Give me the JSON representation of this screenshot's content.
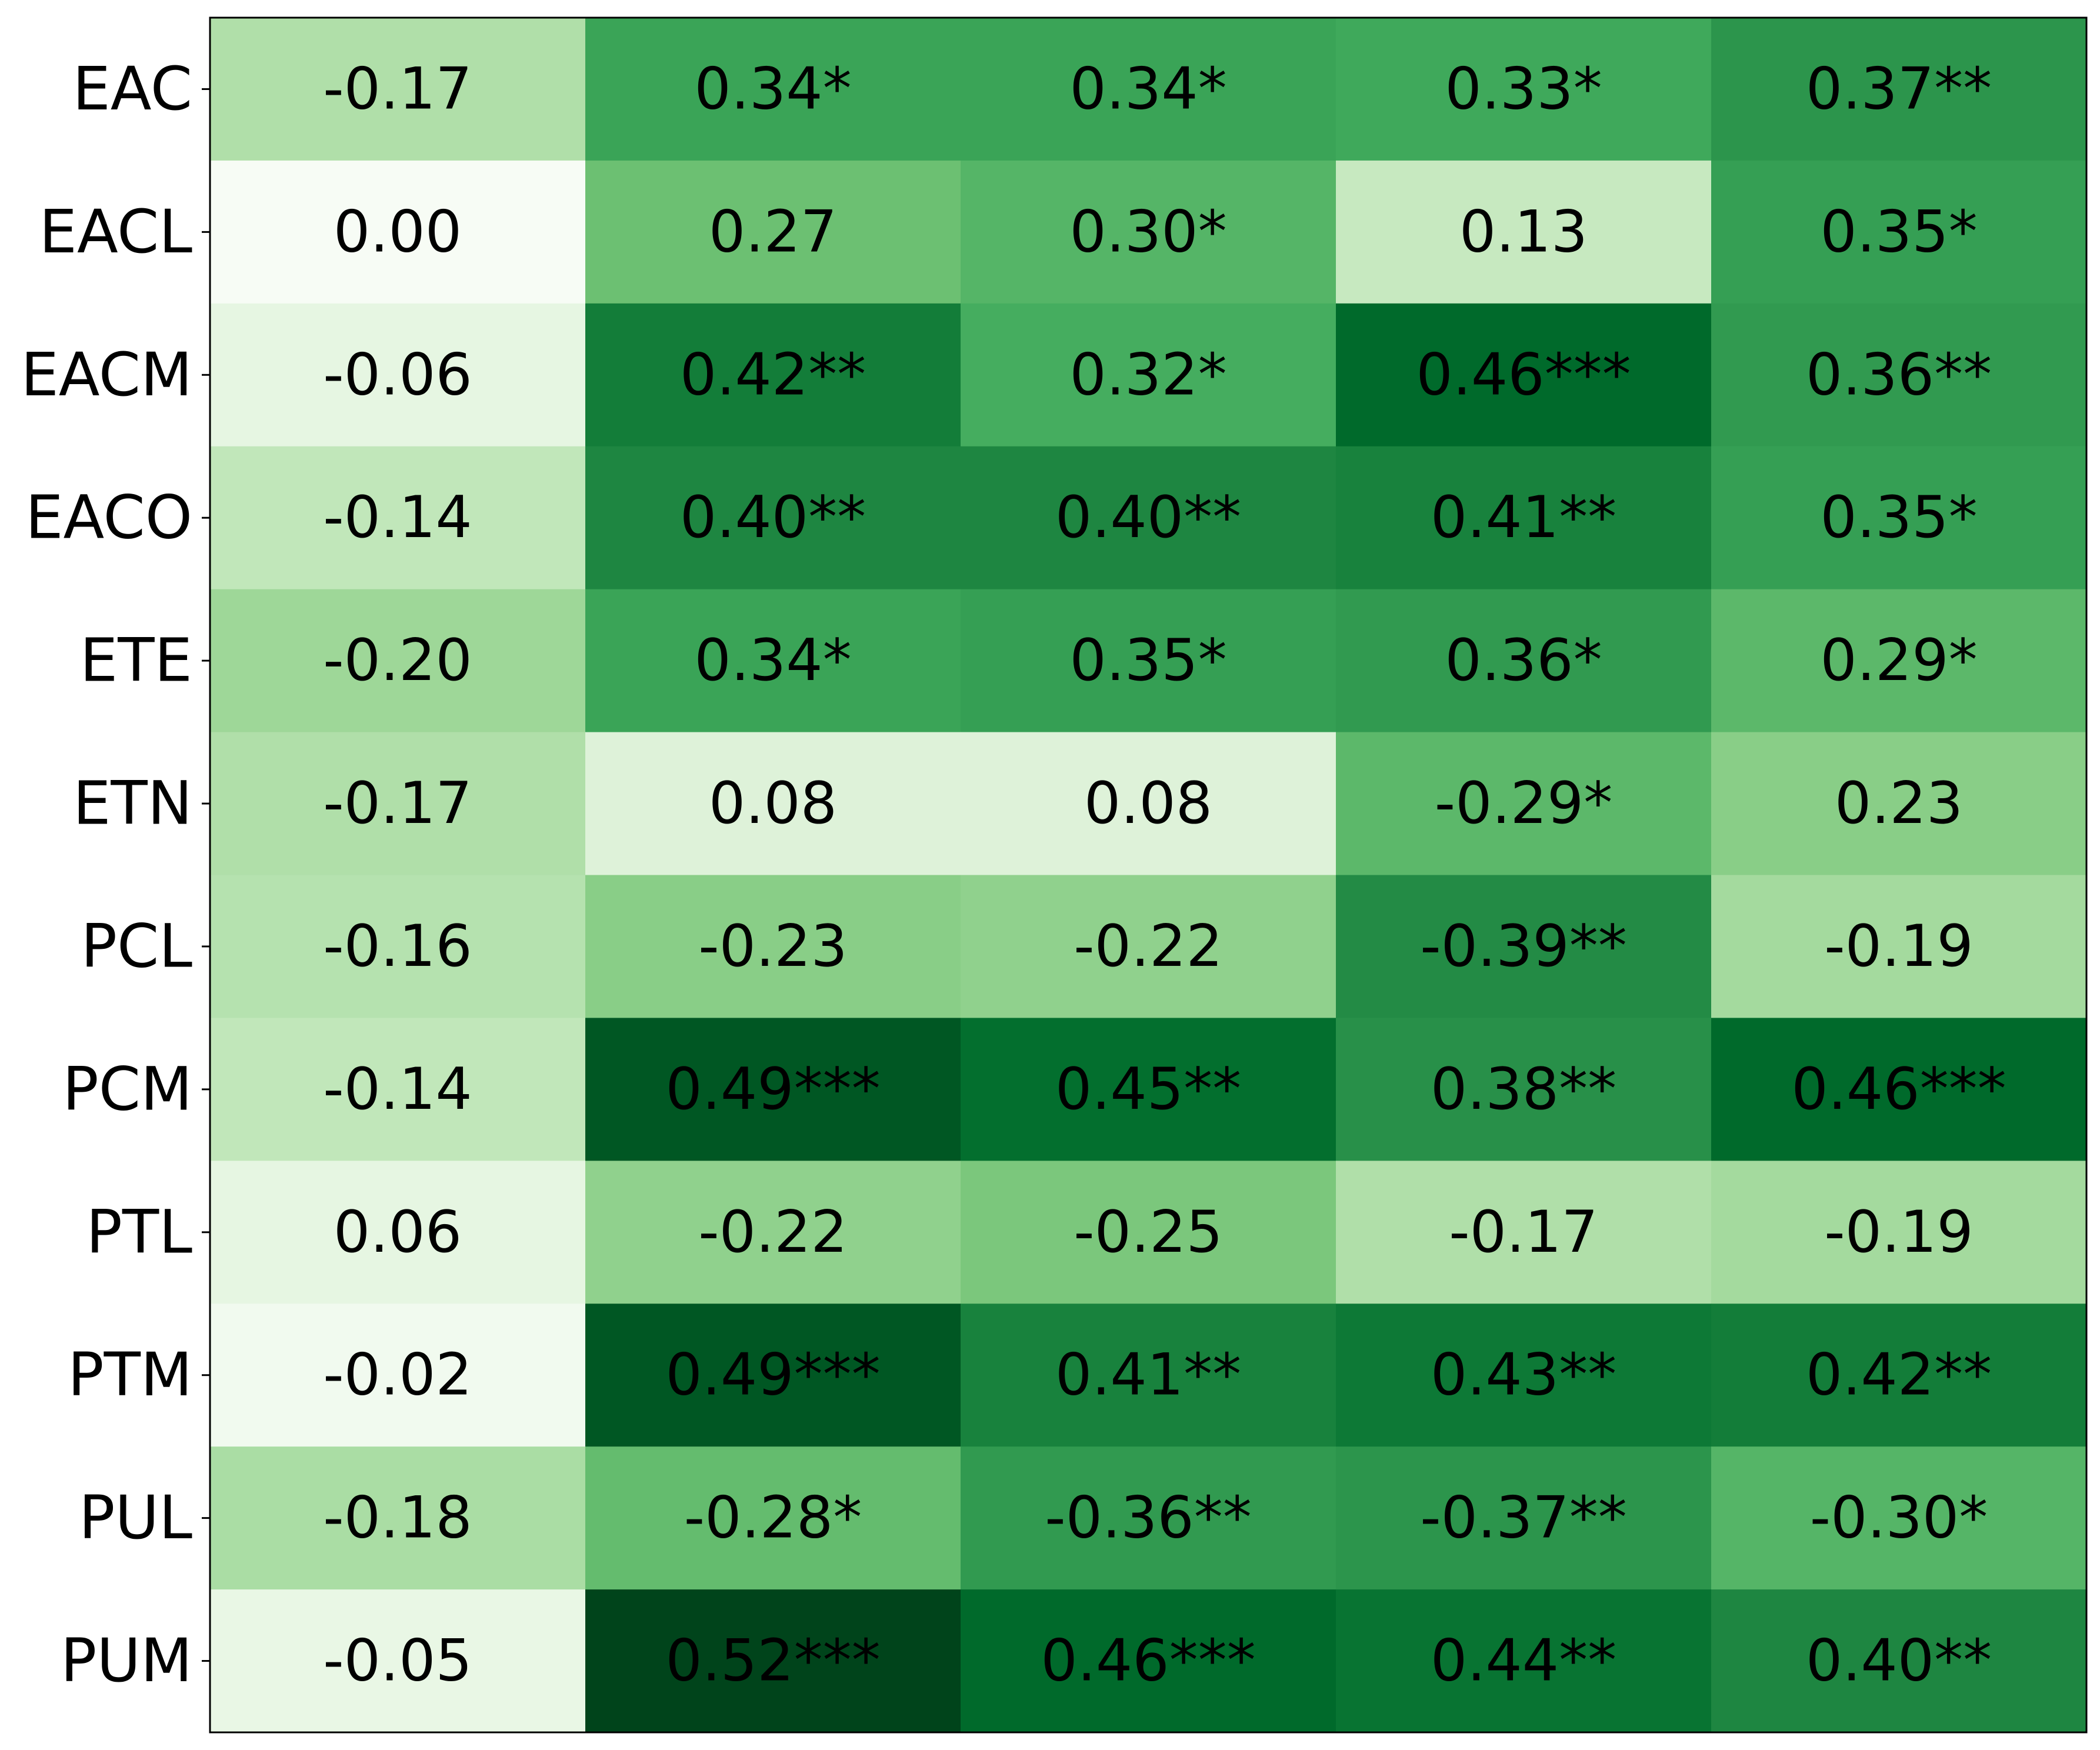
{
  "chart_data": {
    "type": "heatmap",
    "title": "",
    "xlabel": "",
    "ylabel": "",
    "colormap": "Greens",
    "rows": [
      "EAC",
      "EACL",
      "EACM",
      "EACO",
      "ETE",
      "ETN",
      "PCL",
      "PCM",
      "PTL",
      "PTM",
      "PUL",
      "PUM"
    ],
    "column_count": 5,
    "column_labels": [],
    "values": [
      [
        -0.17,
        0.34,
        0.34,
        0.33,
        0.37
      ],
      [
        0.0,
        0.27,
        0.3,
        0.13,
        0.35
      ],
      [
        -0.06,
        0.42,
        0.32,
        0.46,
        0.36
      ],
      [
        -0.14,
        0.4,
        0.4,
        0.41,
        0.35
      ],
      [
        -0.2,
        0.34,
        0.35,
        0.36,
        0.29
      ],
      [
        -0.17,
        0.08,
        0.08,
        -0.29,
        0.23
      ],
      [
        -0.16,
        -0.23,
        -0.22,
        -0.39,
        -0.19
      ],
      [
        -0.14,
        0.49,
        0.45,
        0.38,
        0.46
      ],
      [
        0.06,
        -0.22,
        -0.25,
        -0.17,
        -0.19
      ],
      [
        -0.02,
        0.49,
        0.41,
        0.43,
        0.42
      ],
      [
        -0.18,
        -0.28,
        -0.36,
        -0.37,
        -0.3
      ],
      [
        -0.05,
        0.52,
        0.46,
        0.44,
        0.4
      ]
    ],
    "cell_labels": [
      [
        "-0.17",
        "0.34*",
        "0.34*",
        "0.33*",
        "0.37**"
      ],
      [
        "0.00",
        "0.27",
        "0.30*",
        "0.13",
        "0.35*"
      ],
      [
        "-0.06",
        "0.42**",
        "0.32*",
        "0.46***",
        "0.36**"
      ],
      [
        "-0.14",
        "0.40**",
        "0.40**",
        "0.41**",
        "0.35*"
      ],
      [
        "-0.20",
        "0.34*",
        "0.35*",
        "0.36*",
        "0.29*"
      ],
      [
        "-0.17",
        "0.08",
        "0.08",
        "-0.29*",
        "0.23"
      ],
      [
        "-0.16",
        "-0.23",
        "-0.22",
        "-0.39**",
        "-0.19"
      ],
      [
        "-0.14",
        "0.49***",
        "0.45**",
        "0.38**",
        "0.46***"
      ],
      [
        "0.06",
        "-0.22",
        "-0.25",
        "-0.17",
        "-0.19"
      ],
      [
        "-0.02",
        "0.49***",
        "0.41**",
        "0.43**",
        "0.42**"
      ],
      [
        "-0.18",
        "-0.28*",
        "-0.36**",
        "-0.37**",
        "-0.30*"
      ],
      [
        "-0.05",
        "0.52***",
        "0.46***",
        "0.44**",
        "0.40**"
      ]
    ]
  }
}
